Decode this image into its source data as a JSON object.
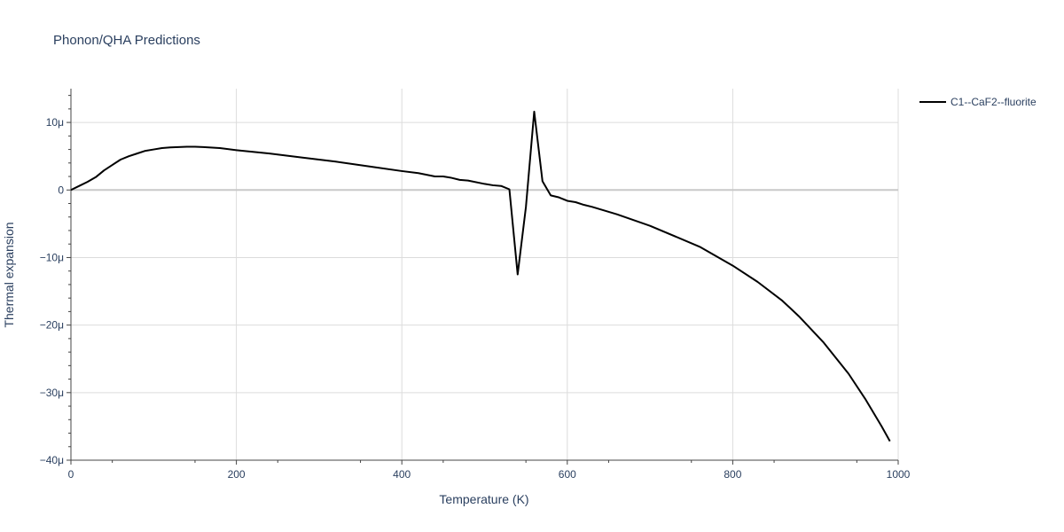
{
  "chart_data": {
    "type": "line",
    "title": "Phonon/QHA Predictions",
    "xlabel": "Temperature (K)",
    "ylabel": "Thermal expansion",
    "xlim": [
      0,
      1000
    ],
    "ylim": [
      -40,
      15
    ],
    "y_unit_note": "values in micro (1e-6) units",
    "grid": true,
    "legend_position": "top-right outside",
    "x_ticks": [
      0,
      200,
      400,
      600,
      800,
      1000
    ],
    "x_tick_labels": [
      "0",
      "200",
      "400",
      "600",
      "800",
      "1000"
    ],
    "y_ticks": [
      10,
      0,
      -10,
      -20,
      -30,
      -40
    ],
    "y_tick_labels": [
      "10μ",
      "0",
      "−10μ",
      "−20μ",
      "−30μ",
      "−40μ"
    ],
    "series": [
      {
        "name": "C1--CaF2--fluorite",
        "color": "#000000",
        "x": [
          0,
          10,
          20,
          30,
          40,
          50,
          60,
          70,
          80,
          90,
          100,
          110,
          120,
          130,
          140,
          150,
          160,
          180,
          200,
          240,
          280,
          320,
          360,
          400,
          420,
          440,
          450,
          460,
          470,
          480,
          500,
          510,
          520,
          530,
          540,
          550,
          560,
          570,
          580,
          590,
          600,
          610,
          620,
          630,
          660,
          700,
          760,
          800,
          830,
          860,
          880,
          910,
          940,
          960,
          980,
          990
        ],
        "y": [
          0,
          0.6,
          1.2,
          1.9,
          2.9,
          3.7,
          4.5,
          5.0,
          5.4,
          5.8,
          6.0,
          6.2,
          6.3,
          6.35,
          6.4,
          6.4,
          6.35,
          6.2,
          5.9,
          5.4,
          4.8,
          4.2,
          3.5,
          2.8,
          2.5,
          2.0,
          2.0,
          1.8,
          1.5,
          1.4,
          0.9,
          0.7,
          0.6,
          0.1,
          -12.5,
          -2.5,
          11.6,
          1.3,
          -0.8,
          -1.1,
          -1.6,
          -1.8,
          -2.2,
          -2.5,
          -3.6,
          -5.3,
          -8.4,
          -11.2,
          -13.6,
          -16.4,
          -18.7,
          -22.6,
          -27.2,
          -30.9,
          -35.0,
          -37.2
        ]
      }
    ]
  }
}
